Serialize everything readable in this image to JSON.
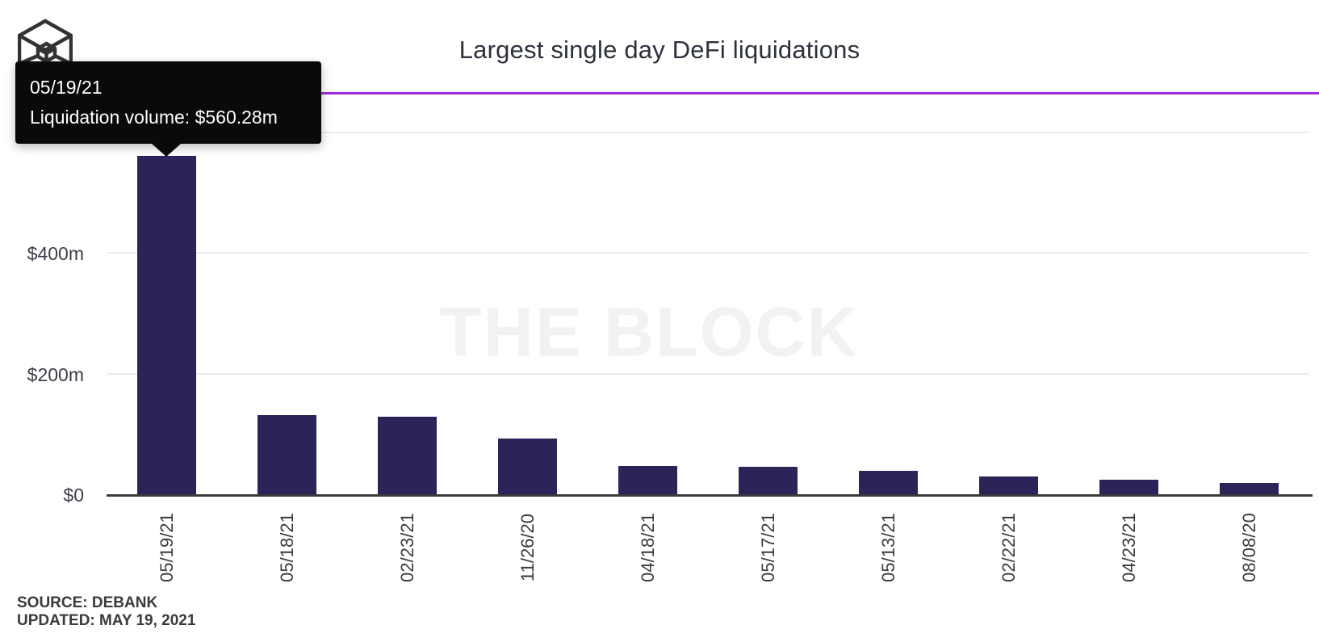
{
  "header": {
    "title": "Largest single day DeFi liquidations"
  },
  "branding": {
    "logo_icon": "the-block-cube-logo",
    "watermark_text": "THE BLOCK",
    "accent_color": "#9b2be1"
  },
  "tooltip": {
    "date": "05/19/21",
    "volume_line": "Liquidation volume: $560.28m"
  },
  "chart_data": {
    "type": "bar",
    "title": "Largest single day DeFi liquidations",
    "categories": [
      "05/19/21",
      "05/18/21",
      "02/23/21",
      "11/26/20",
      "04/18/21",
      "05/17/21",
      "05/13/21",
      "02/22/21",
      "04/23/21",
      "08/08/20"
    ],
    "values": [
      560.28,
      130.5,
      127.9,
      92.9,
      47.2,
      45.1,
      39.1,
      28.9,
      23.6,
      18.2
    ],
    "unit": "millions USD",
    "xlabel": "",
    "ylabel": "",
    "ylim": [
      0,
      620
    ],
    "yticks": [
      {
        "label": "$0",
        "value": 0
      },
      {
        "label": "$200m",
        "value": 200
      },
      {
        "label": "$400m",
        "value": 400
      },
      {
        "label": "",
        "value": 600
      }
    ],
    "grid": true,
    "legend": "none",
    "bar_color": "#2a2459",
    "highlighted_category": "05/19/21",
    "highlighted_value_label": "$560.28m"
  },
  "footer": {
    "source": "SOURCE: DEBANK",
    "updated": "UPDATED: MAY 19, 2021"
  }
}
